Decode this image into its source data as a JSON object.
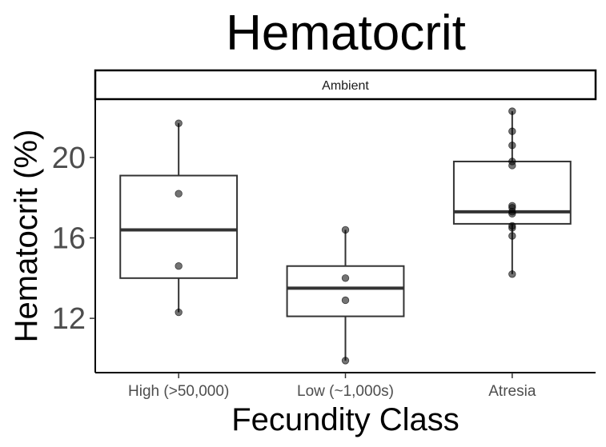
{
  "chart_data": {
    "type": "boxplot",
    "title": "Hematocrit",
    "facet_label": "Ambient",
    "xlabel": "Fecundity Class",
    "ylabel": "Hematocrit (%)",
    "categories": [
      "High (>50,000)",
      "Low (~1,000s)",
      "Atresia"
    ],
    "yticks": [
      12,
      16,
      20
    ],
    "ylim": [
      9.3,
      22.9
    ],
    "boxes": [
      {
        "category": "High (>50,000)",
        "min": 12.3,
        "q1": 14.0,
        "median": 16.4,
        "q3": 19.1,
        "max": 21.7
      },
      {
        "category": "Low (~1,000s)",
        "min": 9.9,
        "q1": 12.1,
        "median": 13.5,
        "q3": 14.6,
        "max": 16.4
      },
      {
        "category": "Atresia",
        "min": 14.2,
        "q1": 16.7,
        "median": 17.3,
        "q3": 19.8,
        "max": 22.3
      }
    ],
    "points": [
      {
        "category": "High (>50,000)",
        "values": [
          21.7,
          18.2,
          14.6,
          12.3
        ]
      },
      {
        "category": "Low (~1,000s)",
        "values": [
          16.4,
          14.0,
          12.9,
          9.9
        ]
      },
      {
        "category": "Atresia",
        "values": [
          22.3,
          21.3,
          20.6,
          19.8,
          19.6,
          17.6,
          17.5,
          17.3,
          17.2,
          16.6,
          16.5,
          16.1,
          14.2
        ]
      }
    ],
    "grid": false,
    "legend": "none"
  }
}
